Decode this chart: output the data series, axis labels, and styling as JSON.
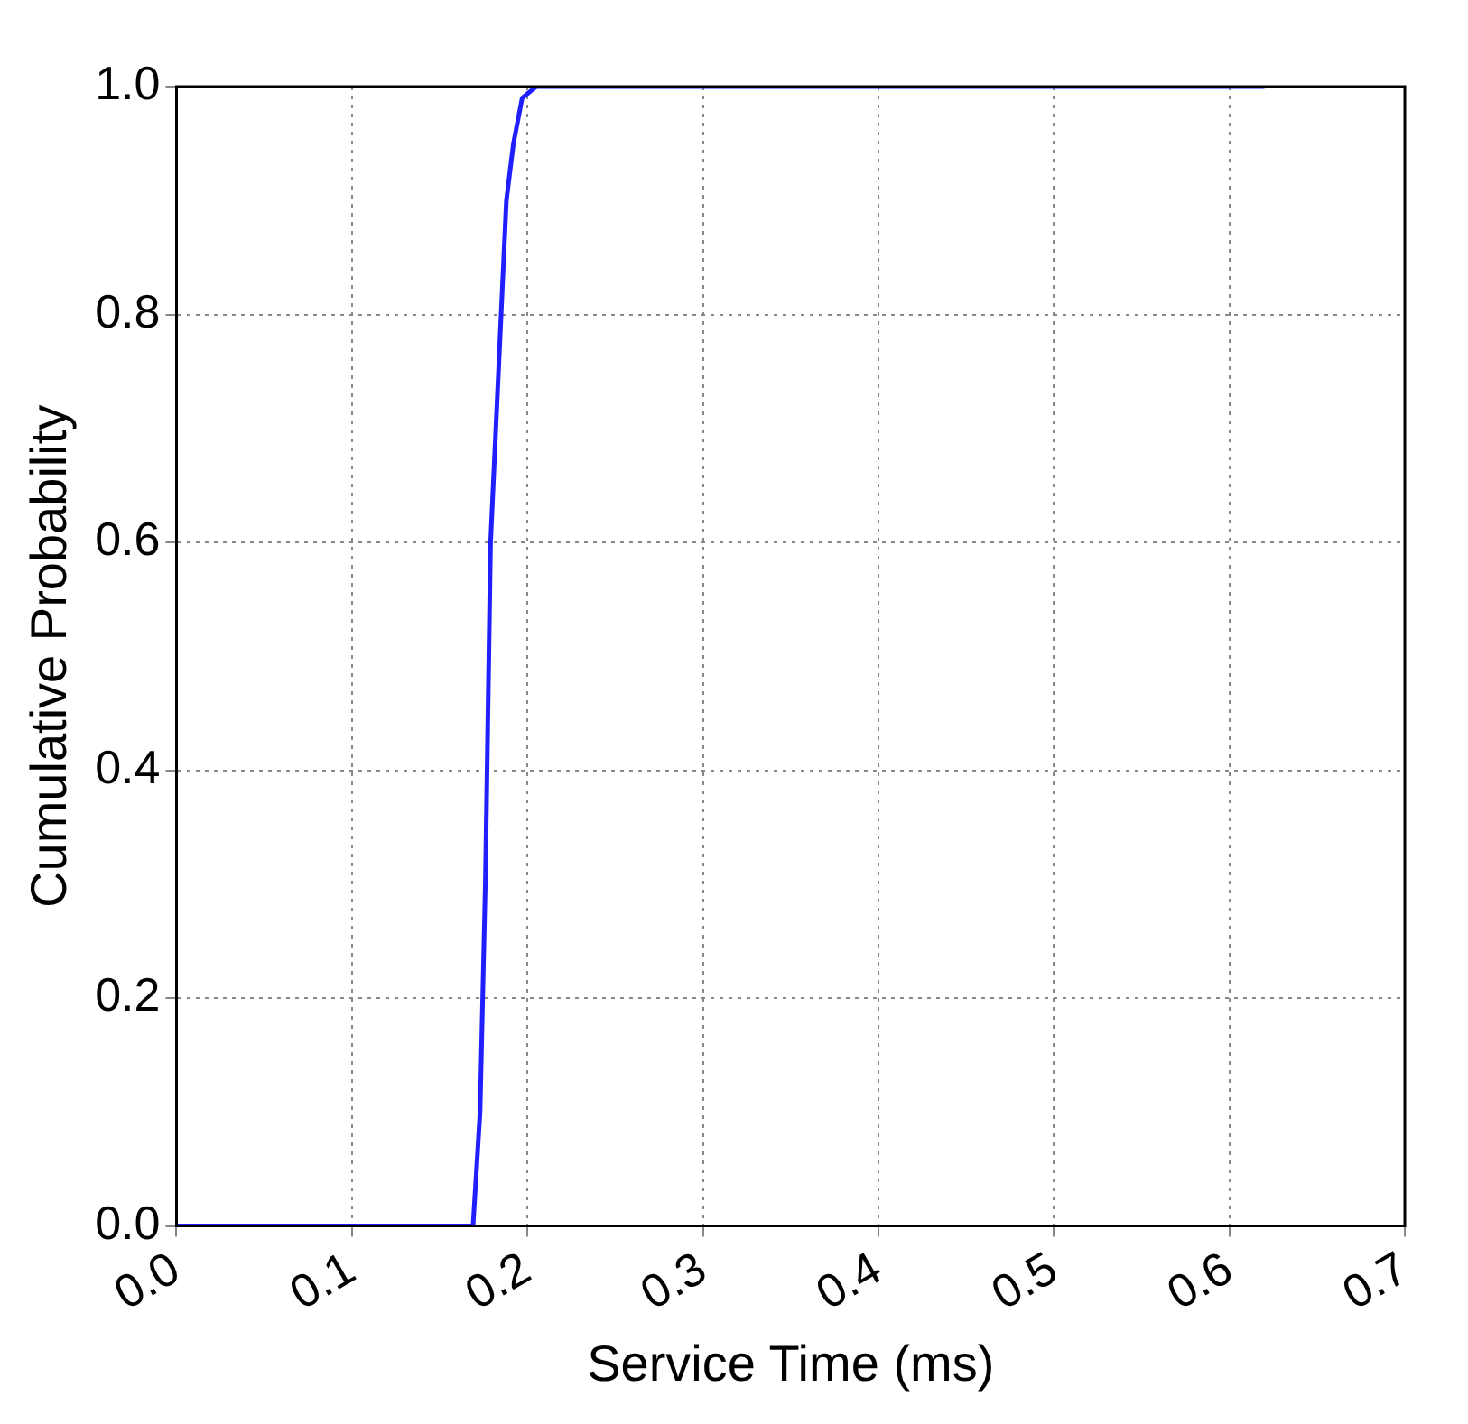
{
  "chart_data": {
    "type": "line",
    "xlabel": "Service Time (ms)",
    "ylabel": "Cumulative Probability",
    "x": [
      0,
      0.169,
      0.171,
      0.173,
      0.176,
      0.179,
      0.182,
      0.185,
      0.188,
      0.192,
      0.197,
      0.205,
      0.3,
      0.4,
      0.5,
      0.62
    ],
    "series": [
      {
        "color": "#1f1fff",
        "values": [
          0,
          0,
          0.05,
          0.1,
          0.3,
          0.6,
          0.7,
          0.8,
          0.9,
          0.95,
          0.99,
          1,
          1,
          1,
          1,
          1
        ]
      }
    ],
    "xlim": [
      0,
      0.7
    ],
    "ylim": [
      0,
      1.0
    ],
    "xticks": [
      {
        "value": 0,
        "label": "0.0"
      },
      {
        "value": 0.1,
        "label": "0.1"
      },
      {
        "value": 0.2,
        "label": "0.2"
      },
      {
        "value": 0.3,
        "label": "0.3"
      },
      {
        "value": 0.4,
        "label": "0.4"
      },
      {
        "value": 0.5,
        "label": "0.5"
      },
      {
        "value": 0.6,
        "label": "0.6"
      },
      {
        "value": 0.7,
        "label": "0.7"
      }
    ],
    "yticks": [
      {
        "value": 0,
        "label": "0.0"
      },
      {
        "value": 0.2,
        "label": "0.2"
      },
      {
        "value": 0.4,
        "label": "0.4"
      },
      {
        "value": 0.6,
        "label": "0.6"
      },
      {
        "value": 0.8,
        "label": "0.8"
      },
      {
        "value": 1.0,
        "label": "1.0"
      }
    ],
    "grid": true,
    "line_style": "solid"
  }
}
